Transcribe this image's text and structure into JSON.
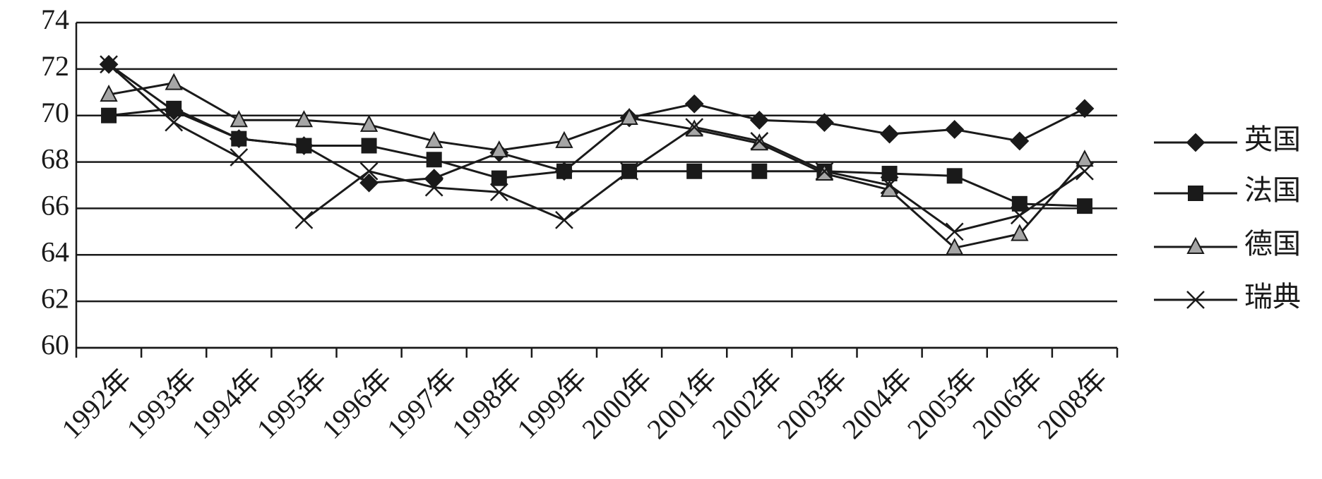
{
  "chart_data": {
    "type": "line",
    "categories": [
      "1992年",
      "1993年",
      "1994年",
      "1995年",
      "1996年",
      "1997年",
      "1998年",
      "1999年",
      "2000年",
      "2001年",
      "2002年",
      "2003年",
      "2004年",
      "2005年",
      "2006年",
      "2008年"
    ],
    "series": [
      {
        "name": "英国",
        "color": "#1a1a1a",
        "marker": "diamond",
        "values": [
          72.2,
          70.2,
          69.0,
          68.7,
          67.1,
          67.3,
          68.4,
          67.6,
          69.9,
          70.5,
          69.8,
          69.7,
          69.2,
          69.4,
          68.9,
          70.3
        ]
      },
      {
        "name": "法国",
        "color": "#1a1a1a",
        "marker": "square",
        "values": [
          70.0,
          70.3,
          69.0,
          68.7,
          68.7,
          68.1,
          67.3,
          67.6,
          67.6,
          67.6,
          67.6,
          67.6,
          67.5,
          67.4,
          66.2,
          66.1
        ]
      },
      {
        "name": "德国",
        "color": "#a6a6a6",
        "marker": "triangle",
        "values": [
          70.9,
          71.4,
          69.8,
          69.8,
          69.6,
          68.9,
          68.5,
          68.9,
          69.9,
          69.4,
          68.8,
          67.5,
          66.8,
          64.3,
          64.9,
          68.1
        ]
      },
      {
        "name": "瑞典",
        "color": "#1a1a1a",
        "marker": "x",
        "values": [
          72.2,
          69.7,
          68.2,
          65.5,
          67.6,
          66.9,
          66.7,
          65.5,
          67.6,
          69.5,
          68.9,
          67.6,
          67.0,
          65.0,
          65.7,
          67.6
        ]
      }
    ],
    "ylim": [
      60,
      74
    ],
    "yticks": [
      60,
      62,
      64,
      66,
      68,
      70,
      72,
      74
    ],
    "grid": true,
    "legend": "right"
  }
}
